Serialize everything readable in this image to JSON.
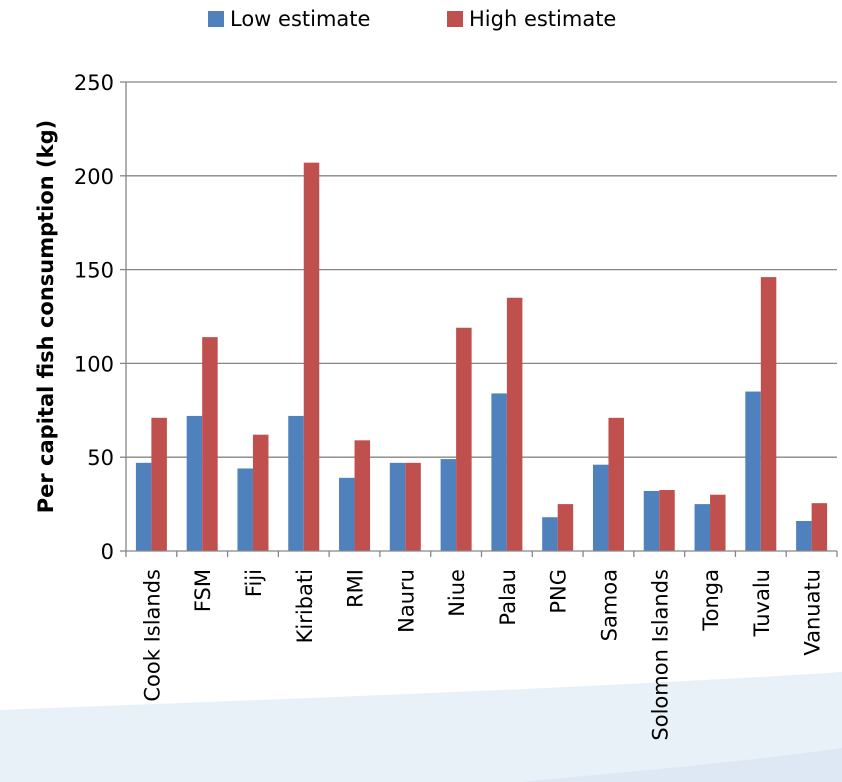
{
  "chart_data": {
    "type": "bar",
    "categories": [
      "Cook Islands",
      "FSM",
      "Fiji",
      "Kiribati",
      "RMI",
      "Nauru",
      "Niue",
      "Palau",
      "PNG",
      "Samoa",
      "Solomon Islands",
      "Tonga",
      "Tuvalu",
      "Vanuatu"
    ],
    "series": [
      {
        "name": "Low estimate",
        "color": "#4f81bd",
        "values": [
          47,
          72,
          44,
          72,
          39,
          47,
          49,
          84,
          18,
          46,
          32,
          25,
          85,
          16
        ]
      },
      {
        "name": "High estimate",
        "color": "#c0504d",
        "values": [
          71,
          114,
          62,
          207,
          59,
          47,
          119,
          135,
          25,
          71,
          32.5,
          30,
          146,
          25.5
        ]
      }
    ],
    "title": "",
    "xlabel": "",
    "ylabel": "Per capital fish consumption (kg)",
    "ylim": [
      0,
      250
    ],
    "yticks": [
      0,
      50,
      100,
      150,
      200,
      250
    ],
    "grid": true,
    "legend_position": "top"
  },
  "colors": {
    "gridline": "#868686",
    "axis": "#868686",
    "background_wave": "#e8f0f8"
  }
}
